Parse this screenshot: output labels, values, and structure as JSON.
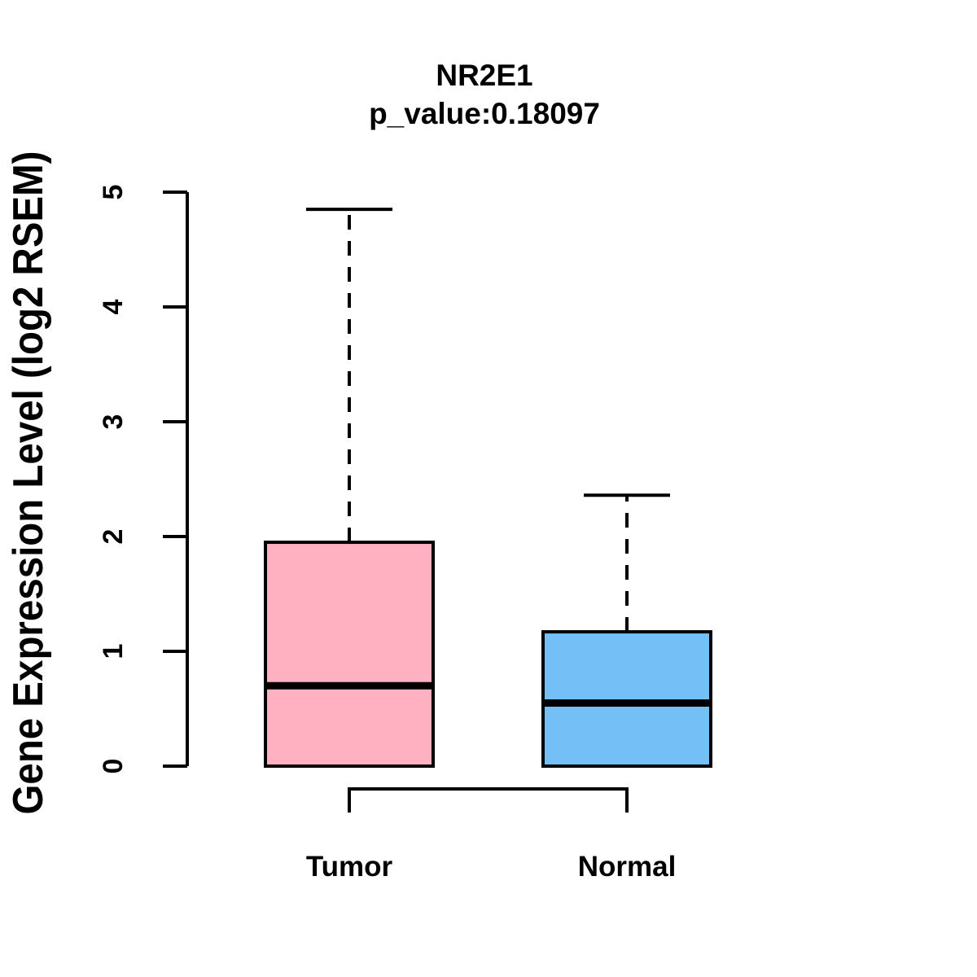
{
  "chart_data": {
    "type": "boxplot",
    "title": "NR2E1",
    "subtitle": "p_value:0.18097",
    "ylabel": "Gene Expression Level (log2 RSEM)",
    "xlabel": "",
    "categories": [
      "Tumor",
      "Normal"
    ],
    "series": [
      {
        "name": "Tumor",
        "min": 0,
        "q1": 0,
        "median": 0.7,
        "q3": 1.95,
        "max": 4.85,
        "fill_color": "#FFB0C1"
      },
      {
        "name": "Normal",
        "min": 0,
        "q1": 0,
        "median": 0.55,
        "q3": 1.17,
        "max": 2.36,
        "fill_color": "#74BFF5"
      }
    ],
    "ylim": [
      0,
      5
    ],
    "yticks": [
      0,
      1,
      2,
      3,
      4,
      5
    ],
    "grid": false,
    "legend": "none",
    "line_color": "#000000",
    "background_color": "#FFFFFF"
  }
}
